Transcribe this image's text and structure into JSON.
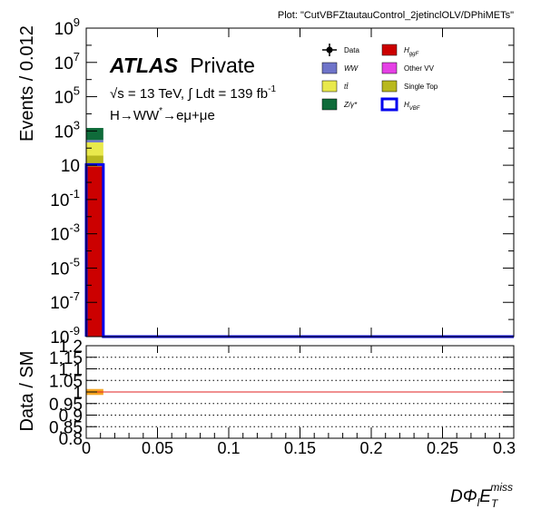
{
  "plot_label": "Plot: \"CutVBFZtautauControl_2jetinclOLV/DPhiMETs\"",
  "atlas": {
    "brand": "ATLAS",
    "status": "Private"
  },
  "energy_label": "√s = 13 TeV, ∫ Ldt = 139 fb",
  "energy_exp": "-1",
  "channel": {
    "main": "H→WW",
    "sup": "*",
    "rest": "→eμ+μe"
  },
  "legend": [
    {
      "label": "Data",
      "marker": "data",
      "color": "#000000"
    },
    {
      "label": "H",
      "sub": "ggF",
      "marker": "box",
      "color": "#cc0000"
    },
    {
      "label": "WW",
      "marker": "box",
      "color": "#6f74c9"
    },
    {
      "label": "Other VV",
      "marker": "box",
      "color": "#e540e5"
    },
    {
      "label": "tt̄",
      "marker": "box",
      "color": "#e9e94c"
    },
    {
      "label": "Single Top",
      "marker": "box",
      "color": "#b8b81e"
    },
    {
      "label": "Z/γ*",
      "marker": "box",
      "color": "#0f6b3a"
    },
    {
      "label": "H",
      "sub": "VBF",
      "marker": "outline",
      "color": "#0000ee"
    }
  ],
  "chart_data": [
    {
      "type": "bar",
      "panel": "main",
      "xlim": [
        0,
        0.3
      ],
      "yscale": "log",
      "ylim": [
        1e-09,
        1000000000.0
      ],
      "ylabel": "Events / 0.012",
      "bin_edges": [
        0,
        0.012
      ],
      "stack": [
        {
          "name": "H ggF",
          "values": [
            8.5
          ],
          "color": "#cc0000"
        },
        {
          "name": "Single Top",
          "values": [
            28
          ],
          "color": "#b8b81e"
        },
        {
          "name": "tt̄",
          "values": [
            180
          ],
          "color": "#e9e94c"
        },
        {
          "name": "WW",
          "values": [
            80
          ],
          "color": "#6f74c9"
        },
        {
          "name": "Z/γ*",
          "values": [
            1200
          ],
          "color": "#0f6b3a"
        }
      ],
      "overlay": {
        "name": "H VBF",
        "values": [
          11
        ],
        "color": "#0000ee",
        "baseline": 1e-09
      },
      "yticks_major": [
        -9,
        -7,
        -5,
        -3,
        -1,
        1,
        3,
        5,
        7,
        9
      ],
      "ytick_labels": [
        {
          "base": "10",
          "exp": "-9"
        },
        {
          "base": "10",
          "exp": "-7"
        },
        {
          "base": "10",
          "exp": "-5"
        },
        {
          "base": "10",
          "exp": "-3"
        },
        {
          "base": "10",
          "exp": "-1"
        },
        {
          "base": "10",
          "exp": ""
        },
        {
          "base": "10",
          "exp": "3"
        },
        {
          "base": "10",
          "exp": "5"
        },
        {
          "base": "10",
          "exp": "7"
        },
        {
          "base": "10",
          "exp": "9"
        }
      ]
    },
    {
      "type": "line",
      "panel": "ratio",
      "ylabel": "Data / SM",
      "xlabel": "DΦ",
      "xlabel_sub": "l",
      "xlabel_main": "E",
      "xlabel_sup": "miss",
      "xlabel_sub2": "T",
      "xlim": [
        0,
        0.3
      ],
      "ylim": [
        0.8,
        1.2
      ],
      "reference": {
        "value": 1.0,
        "color": "#e02020"
      },
      "dotted_lines": [
        0.85,
        0.9,
        0.95,
        1.05,
        1.1,
        1.15
      ],
      "uncertainty": {
        "x": [
          0,
          0.012
        ],
        "low": 0.995,
        "high": 1.005,
        "color": "#f5a623"
      },
      "xticks": [
        0,
        0.05,
        0.1,
        0.15,
        0.2,
        0.25,
        0.3
      ],
      "xtick_labels": [
        "0",
        "0.05",
        "0.1",
        "0.15",
        "0.2",
        "0.25",
        "0.3"
      ],
      "yticks": [
        0.8,
        0.85,
        0.9,
        0.95,
        1.0,
        1.05,
        1.1,
        1.15,
        1.2
      ],
      "ytick_labels": [
        "0.8",
        "0.85",
        "0.9",
        "0.95",
        "1",
        "1.05",
        "1.1",
        "1.15",
        "1.2"
      ]
    }
  ]
}
